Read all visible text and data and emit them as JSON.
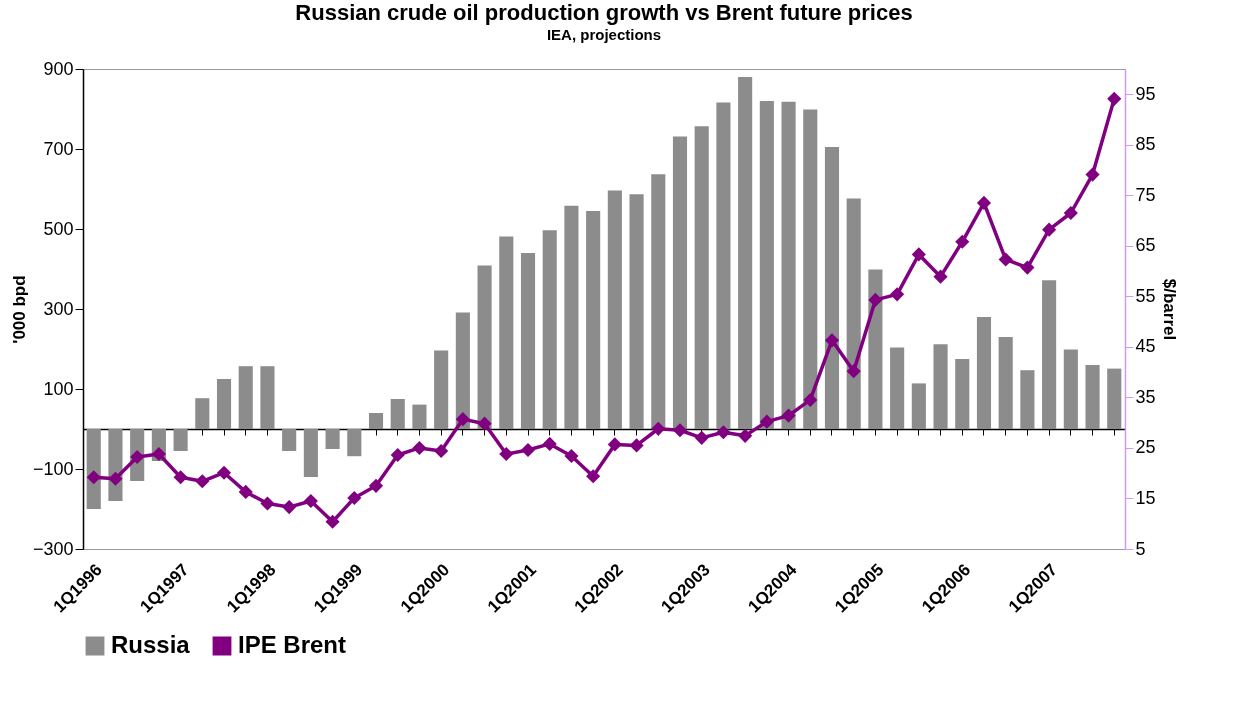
{
  "chart_data": {
    "type": "bar",
    "title": "Russian crude oil production growth vs Brent future prices",
    "subtitle": "IEA, projections",
    "ylabel": "'000 bpd",
    "y2label": "$/barrel",
    "categories": [
      "1Q1996",
      null,
      null,
      null,
      "1Q1997",
      null,
      null,
      null,
      "1Q1998",
      null,
      null,
      null,
      "1Q1999",
      null,
      null,
      null,
      "1Q2000",
      null,
      null,
      null,
      "1Q2001",
      null,
      null,
      null,
      "1Q2002",
      null,
      null,
      null,
      "1Q2003",
      null,
      null,
      null,
      "1Q2004",
      null,
      null,
      null,
      "1Q2005",
      null,
      null,
      null,
      "1Q2006",
      null,
      null,
      null,
      "1Q2007",
      null,
      null,
      null
    ],
    "series": [
      {
        "name": "Russia",
        "color": "#8c8c8c",
        "values": [
          -200,
          -180,
          -130,
          -80,
          -55,
          77,
          125,
          157,
          157,
          -55,
          -120,
          -50,
          -68,
          40,
          75,
          61,
          196,
          291,
          409,
          481,
          440,
          497,
          558,
          545,
          596,
          587,
          637,
          731,
          757,
          816,
          880,
          820,
          818,
          799,
          705,
          576,
          399,
          204,
          114,
          212,
          175,
          280,
          230,
          147,
          372,
          199,
          160,
          151
        ]
      },
      {
        "name": "IPE Brent",
        "type": "line",
        "axis": "y2",
        "color": "#800080",
        "marker": "diamond",
        "line_style": "solid",
        "values": [
          19.2,
          18.9,
          23.2,
          23.8,
          19.2,
          18.4,
          20.1,
          16.3,
          14.0,
          13.3,
          14.5,
          10.4,
          15.1,
          17.5,
          23.6,
          25.0,
          24.4,
          30.7,
          29.8,
          23.8,
          24.6,
          25.8,
          23.4,
          19.4,
          25.7,
          25.5,
          28.8,
          28.5,
          27.0,
          28.1,
          27.4,
          30.2,
          31.4,
          34.5,
          46.3,
          40.2,
          54.3,
          55.4,
          63.3,
          58.9,
          65.8,
          73.5,
          62.3,
          60.7,
          68.2,
          71.5,
          79.1,
          94.1
        ]
      }
    ],
    "ylim": [
      -300,
      900
    ],
    "yticks": [
      -300,
      -100,
      100,
      300,
      500,
      700,
      900
    ],
    "y2lim": [
      5,
      100
    ],
    "y2ticks": [
      5,
      15,
      25,
      35,
      45,
      55,
      65,
      75,
      85,
      95
    ],
    "grid": false,
    "legend": "bottom"
  }
}
